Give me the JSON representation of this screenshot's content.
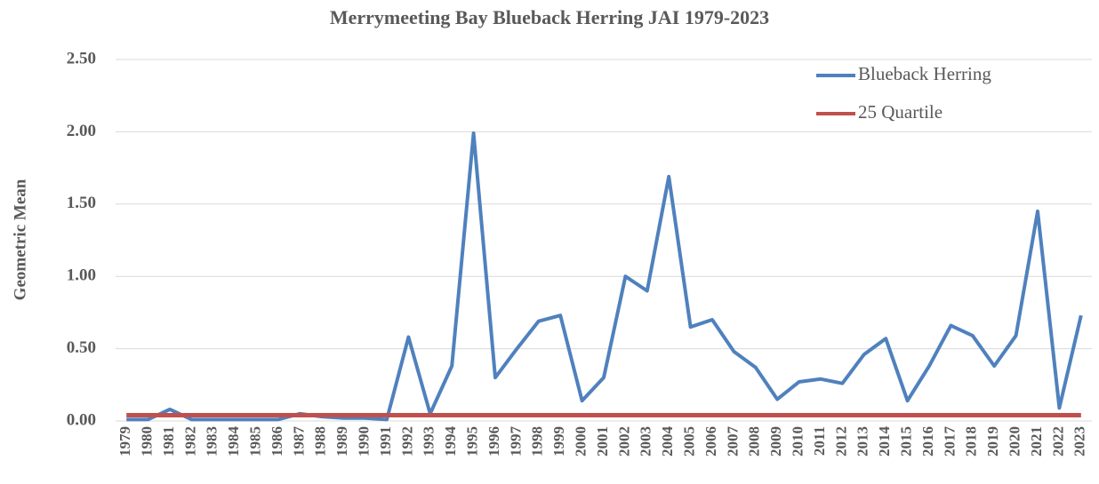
{
  "chart_data": {
    "type": "line",
    "title": "Merrymeeting  Bay Blueback Herring JAI 1979-2023",
    "y_label": "Geometric Mean",
    "categories": [
      "1979",
      "1980",
      "1981",
      "1982",
      "1983",
      "1984",
      "1985",
      "1986",
      "1987",
      "1988",
      "1989",
      "1990",
      "1991",
      "1992",
      "1993",
      "1994",
      "1995",
      "1996",
      "1997",
      "1998",
      "1999",
      "2000",
      "2001",
      "2002",
      "2003",
      "2004",
      "2005",
      "2006",
      "2007",
      "2008",
      "2009",
      "2010",
      "2011",
      "2012",
      "2013",
      "2014",
      "2015",
      "2016",
      "2017",
      "2018",
      "2019",
      "2020",
      "2021",
      "2022",
      "2023"
    ],
    "series": [
      {
        "name": "Blueback Herring",
        "color": "#4f81bd",
        "values": [
          0.01,
          0.01,
          0.08,
          0.01,
          0.01,
          0.01,
          0.01,
          0.01,
          0.05,
          0.03,
          0.02,
          0.02,
          0.01,
          0.58,
          0.05,
          0.38,
          1.99,
          0.3,
          0.5,
          0.69,
          0.73,
          0.14,
          0.3,
          1.0,
          0.9,
          1.69,
          0.65,
          0.7,
          0.48,
          0.37,
          0.15,
          0.27,
          0.29,
          0.26,
          0.46,
          0.57,
          0.14,
          0.38,
          0.66,
          0.59,
          0.38,
          0.59,
          1.45,
          0.09,
          0.73
        ]
      },
      {
        "name": "25 Quartile",
        "color": "#c0504d",
        "values": [
          0.04,
          0.04,
          0.04,
          0.04,
          0.04,
          0.04,
          0.04,
          0.04,
          0.04,
          0.04,
          0.04,
          0.04,
          0.04,
          0.04,
          0.04,
          0.04,
          0.04,
          0.04,
          0.04,
          0.04,
          0.04,
          0.04,
          0.04,
          0.04,
          0.04,
          0.04,
          0.04,
          0.04,
          0.04,
          0.04,
          0.04,
          0.04,
          0.04,
          0.04,
          0.04,
          0.04,
          0.04,
          0.04,
          0.04,
          0.04,
          0.04,
          0.04,
          0.04,
          0.04,
          0.04
        ]
      }
    ],
    "ylim": [
      0,
      2.5
    ],
    "yticks": [
      {
        "value": 0,
        "label": "0.00"
      },
      {
        "value": 0.5,
        "label": "0.50"
      },
      {
        "value": 1,
        "label": "1.00"
      },
      {
        "value": 1.5,
        "label": "1.50"
      },
      {
        "value": 2,
        "label": "2.00"
      },
      {
        "value": 2.5,
        "label": "2.50"
      }
    ],
    "grid": true,
    "legend": "upper-right"
  }
}
